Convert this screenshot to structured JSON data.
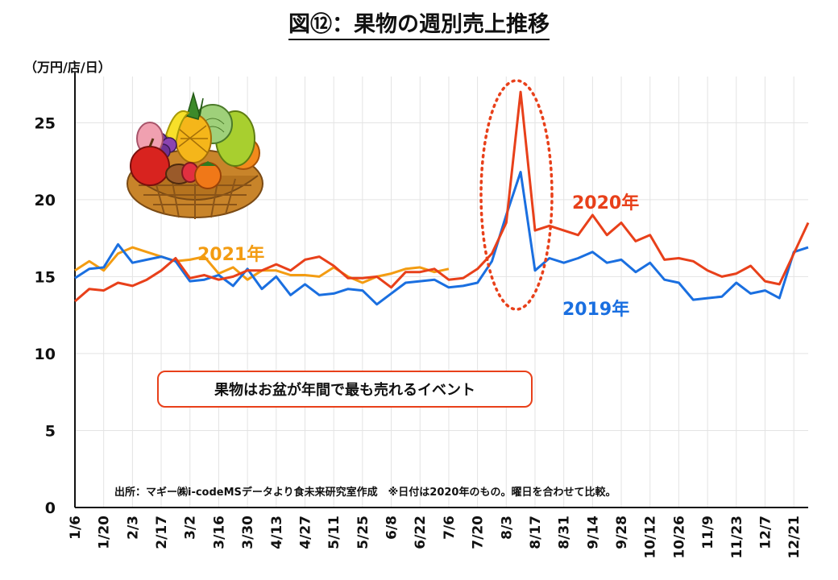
{
  "title": "図⑫：果物の週別売上推移",
  "unit": "（万円/店/日）",
  "note": "果物はお盆が年間で最も売れるイベント",
  "source": "出所：マギー㈱i-codeMSデータより食未来研究室作成　※日付は2020年のもの。曜日を合わせて比較。",
  "colors": {
    "y2020": "#e8401a",
    "y2019": "#1a6fe0",
    "y2021": "#f39c12",
    "grid": "#e3e3e3",
    "highlight": "#e8401a"
  },
  "chart_data": {
    "type": "line",
    "title": "図⑫：果物の週別売上推移",
    "ylabel": "（万円/店/日）",
    "ylim": [
      0,
      28
    ],
    "yticks": [
      0,
      5,
      10,
      15,
      20,
      25
    ],
    "xtick_labels": [
      "1/6",
      "1/20",
      "2/3",
      "2/17",
      "3/2",
      "3/16",
      "3/30",
      "4/13",
      "4/27",
      "5/11",
      "5/25",
      "6/8",
      "6/22",
      "7/6",
      "7/20",
      "8/3",
      "8/17",
      "8/31",
      "9/14",
      "9/28",
      "10/12",
      "10/26",
      "11/9",
      "11/23",
      "12/7",
      "12/21"
    ],
    "series": [
      {
        "name": "2020年",
        "values": [
          13.4,
          14.2,
          14.1,
          14.6,
          14.4,
          14.8,
          15.4,
          16.2,
          14.9,
          15.1,
          14.8,
          15.0,
          15.4,
          15.4,
          15.8,
          15.4,
          16.1,
          16.3,
          15.7,
          14.9,
          14.9,
          15.0,
          14.3,
          15.3,
          15.3,
          15.5,
          14.8,
          14.9,
          15.5,
          16.5,
          18.5,
          27.0,
          18.0,
          18.3,
          18.0,
          17.7,
          19.0,
          17.7,
          18.5,
          17.3,
          17.7,
          16.1,
          16.2,
          16.0,
          15.4,
          15.0,
          15.2,
          15.7,
          14.7,
          14.5,
          16.5,
          18.5
        ]
      },
      {
        "name": "2019年",
        "values": [
          14.9,
          15.5,
          15.6,
          17.1,
          15.9,
          16.1,
          16.3,
          16.0,
          14.7,
          14.8,
          15.1,
          14.4,
          15.5,
          14.2,
          15.0,
          13.8,
          14.5,
          13.8,
          13.9,
          14.2,
          14.1,
          13.2,
          13.9,
          14.6,
          14.7,
          14.8,
          14.3,
          14.4,
          14.6,
          16.0,
          19.0,
          21.8,
          15.4,
          16.2,
          15.9,
          16.2,
          16.6,
          15.9,
          16.1,
          15.3,
          15.9,
          14.8,
          14.6,
          13.5,
          13.6,
          13.7,
          14.6,
          13.9,
          14.1,
          13.6,
          16.6,
          16.9
        ]
      },
      {
        "name": "2021年",
        "values": [
          15.4,
          16.0,
          15.4,
          16.5,
          16.9,
          16.6,
          16.3,
          16.0,
          16.1,
          16.3,
          15.2,
          15.6,
          14.8,
          15.4,
          15.4,
          15.1,
          15.1,
          15.0,
          15.6,
          15.0,
          14.6,
          15.0,
          15.2,
          15.5,
          15.6,
          15.3,
          15.5
        ]
      }
    ],
    "annotations": [
      "2020年",
      "2021年",
      "2019年",
      "果物はお盆が年間で最も売れるイベント"
    ]
  }
}
